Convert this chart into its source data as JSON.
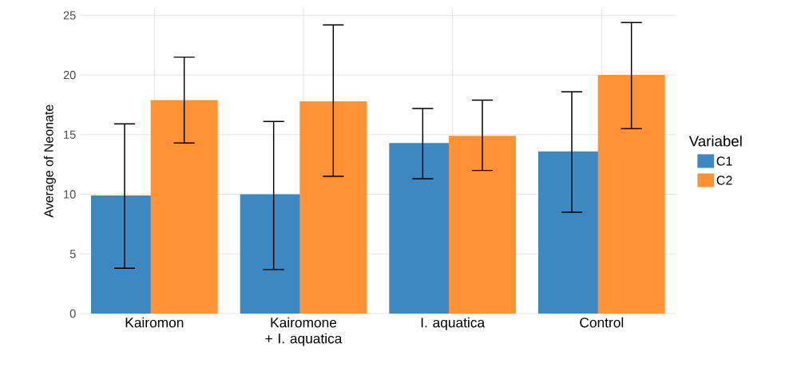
{
  "chart_data": {
    "type": "bar",
    "ylabel": "Average of Neonate",
    "legend_title": "Variabel",
    "categories": [
      "Kairomon",
      "Kairomone + I. aquatica",
      "I. aquatica",
      "Control"
    ],
    "series": [
      {
        "name": "C1",
        "color": "#3d88c0",
        "values": [
          9.9,
          10.0,
          14.3,
          13.6
        ],
        "errors": [
          [
            3.8,
            15.9
          ],
          [
            3.7,
            16.1
          ],
          [
            11.3,
            17.2
          ],
          [
            8.5,
            18.6
          ]
        ]
      },
      {
        "name": "C2",
        "color": "#ff9234",
        "values": [
          17.9,
          17.8,
          14.9,
          20.0
        ],
        "errors": [
          [
            14.3,
            21.5
          ],
          [
            11.5,
            24.2
          ],
          [
            12.0,
            17.9
          ],
          [
            15.5,
            24.4
          ]
        ]
      }
    ],
    "ylim": [
      0,
      25.6
    ],
    "yticks": [
      0,
      5,
      10,
      15,
      20,
      25
    ],
    "grid": true,
    "legend": "right"
  }
}
